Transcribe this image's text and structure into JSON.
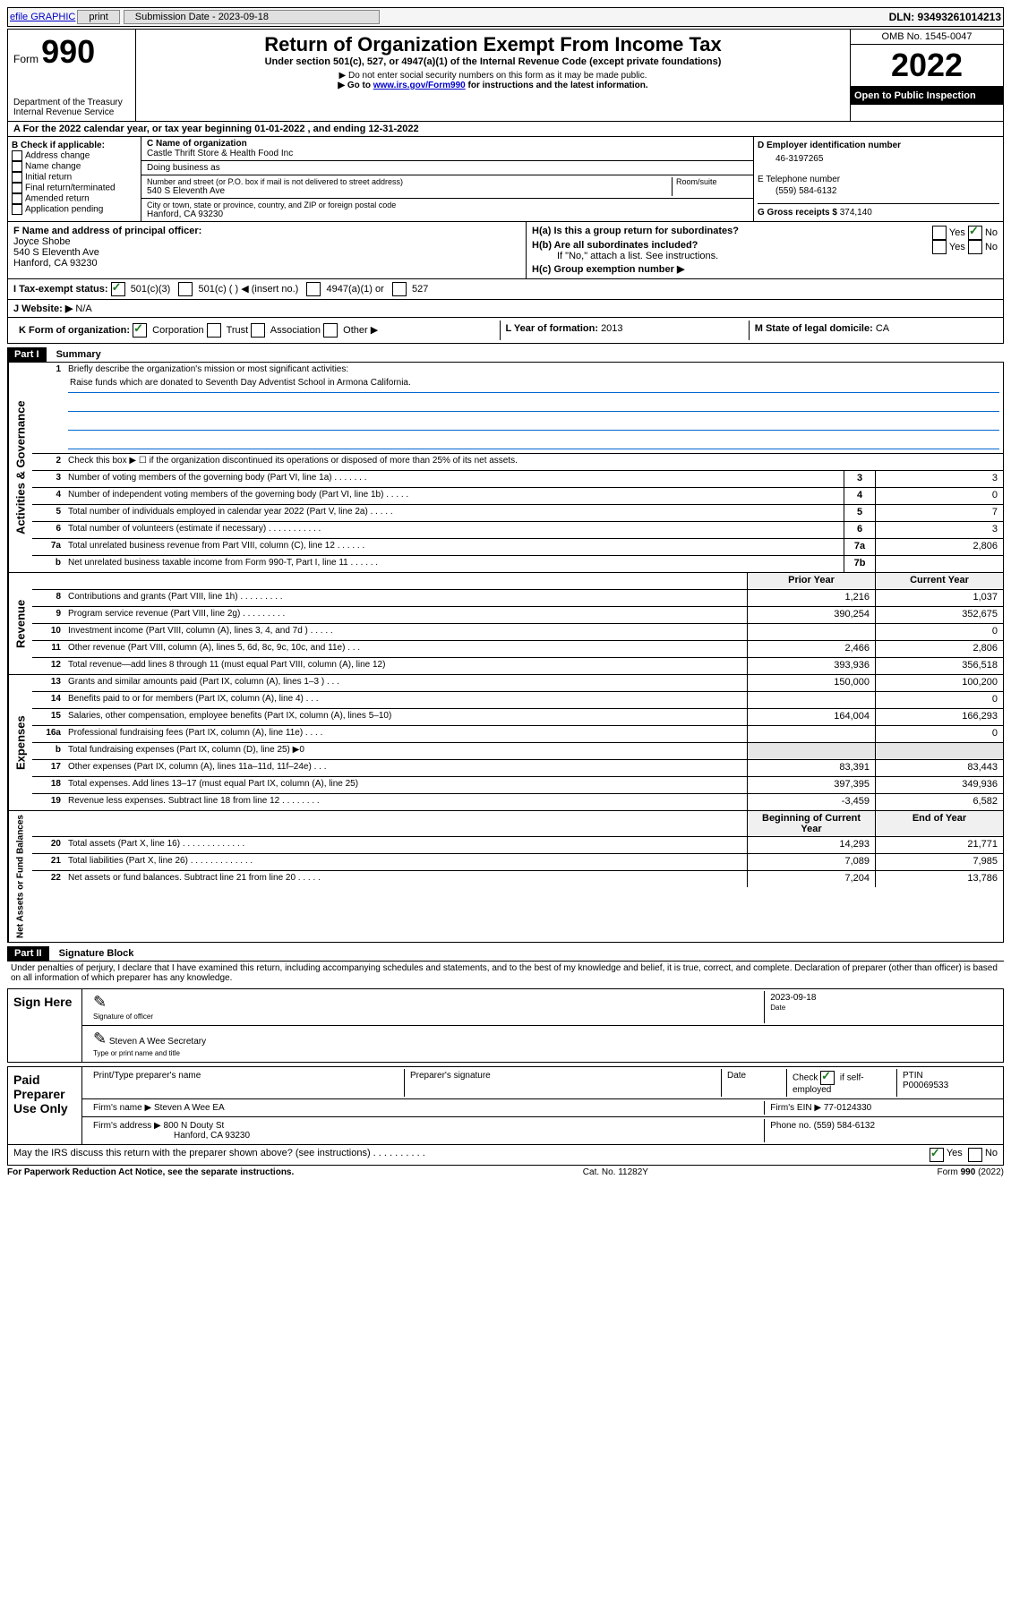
{
  "topbar": {
    "efile_label": "efile GRAPHIC",
    "print_btn": "print",
    "submission_label": "Submission Date - 2023-09-18",
    "dln_label": "DLN: 93493261014213"
  },
  "header": {
    "form_word": "Form",
    "form_number": "990",
    "title": "Return of Organization Exempt From Income Tax",
    "subtitle": "Under section 501(c), 527, or 4947(a)(1) of the Internal Revenue Code (except private foundations)",
    "line1": "▶ Do not enter social security numbers on this form as it may be made public.",
    "line2_pre": "▶ Go to ",
    "line2_link": "www.irs.gov/Form990",
    "line2_post": " for instructions and the latest information.",
    "dept": "Department of the Treasury",
    "irs": "Internal Revenue Service",
    "omb": "OMB No. 1545-0047",
    "year": "2022",
    "open": "Open to Public Inspection"
  },
  "period": {
    "text_a": "A For the 2022 calendar year, or tax year beginning ",
    "begin": "01-01-2022",
    "text_mid": " , and ending ",
    "end": "12-31-2022"
  },
  "section_b": {
    "heading": "B Check if applicable:",
    "items": [
      "Address change",
      "Name change",
      "Initial return",
      "Final return/terminated",
      "Amended return",
      "Application pending"
    ]
  },
  "section_c": {
    "name_label": "C Name of organization",
    "name": "Castle Thrift Store & Health Food Inc",
    "dba_label": "Doing business as",
    "street_label": "Number and street (or P.O. box if mail is not delivered to street address)",
    "room_label": "Room/suite",
    "street": "540 S Eleventh Ave",
    "city_label": "City or town, state or province, country, and ZIP or foreign postal code",
    "city": "Hanford, CA  93230"
  },
  "section_d": {
    "ein_label": "D Employer identification number",
    "ein": "46-3197265",
    "phone_label": "E Telephone number",
    "phone": "(559) 584-6132",
    "gross_label": "G Gross receipts $ ",
    "gross": "374,140"
  },
  "section_f": {
    "label": "F Name and address of principal officer:",
    "name": "Joyce Shobe",
    "addr1": "540 S Eleventh Ave",
    "addr2": "Hanford, CA  93230"
  },
  "section_h": {
    "ha": "H(a)  Is this a group return for subordinates?",
    "hb": "H(b)  Are all subordinates included?",
    "hb_note": "If \"No,\" attach a list. See instructions.",
    "hc": "H(c)  Group exemption number ▶",
    "yes": "Yes",
    "no": "No"
  },
  "tax_status": {
    "label": "I   Tax-exempt status:",
    "opt1": "501(c)(3)",
    "opt2": "501(c) (   ) ◀ (insert no.)",
    "opt3": "4947(a)(1) or",
    "opt4": "527"
  },
  "website": {
    "label": "J   Website: ▶",
    "value": "N/A"
  },
  "kform": {
    "label": "K Form of organization:",
    "opts": [
      "Corporation",
      "Trust",
      "Association",
      "Other ▶"
    ],
    "l_label": "L Year of formation: ",
    "l_val": "2013",
    "m_label": "M State of legal domicile: ",
    "m_val": "CA"
  },
  "part1": {
    "header": "Part I",
    "title": "Summary",
    "line1_label": "Briefly describe the organization's mission or most significant activities:",
    "mission": "Raise funds which are donated to Seventh Day Adventist School in Armona California.",
    "line2": "Check this box ▶ ☐  if the organization discontinued its operations or disposed of more than 25% of its net assets.",
    "groups": {
      "gov": "Activities & Governance",
      "rev": "Revenue",
      "exp": "Expenses",
      "net": "Net Assets or Fund Balances"
    },
    "col_headers": {
      "prior": "Prior Year",
      "current": "Current Year",
      "begin": "Beginning of Current Year",
      "end": "End of Year"
    },
    "rows_gov": [
      {
        "n": "3",
        "t": "Number of voting members of the governing body (Part VI, line 1a)  .   .   .   .   .   .   .",
        "cn": "3",
        "v": "3"
      },
      {
        "n": "4",
        "t": "Number of independent voting members of the governing body (Part VI, line 1b)   .   .   .   .   .",
        "cn": "4",
        "v": "0"
      },
      {
        "n": "5",
        "t": "Total number of individuals employed in calendar year 2022 (Part V, line 2a)   .   .   .   .   .",
        "cn": "5",
        "v": "7"
      },
      {
        "n": "6",
        "t": "Total number of volunteers (estimate if necessary)   .   .   .   .   .   .   .   .   .   .   .",
        "cn": "6",
        "v": "3"
      },
      {
        "n": "7a",
        "t": "Total unrelated business revenue from Part VIII, column (C), line 12   .   .   .   .   .   .",
        "cn": "7a",
        "v": "2,806"
      },
      {
        "n": "b",
        "t": "Net unrelated business taxable income from Form 990-T, Part I, line 11   .   .   .   .   .   .",
        "cn": "7b",
        "v": ""
      }
    ],
    "rows_rev": [
      {
        "n": "8",
        "t": "Contributions and grants (Part VIII, line 1h)   .   .   .   .   .   .   .   .   .",
        "p": "1,216",
        "c": "1,037"
      },
      {
        "n": "9",
        "t": "Program service revenue (Part VIII, line 2g)   .   .   .   .   .   .   .   .   .",
        "p": "390,254",
        "c": "352,675"
      },
      {
        "n": "10",
        "t": "Investment income (Part VIII, column (A), lines 3, 4, and 7d )   .   .   .   .   .",
        "p": "",
        "c": "0"
      },
      {
        "n": "11",
        "t": "Other revenue (Part VIII, column (A), lines 5, 6d, 8c, 9c, 10c, and 11e)   .   .   .",
        "p": "2,466",
        "c": "2,806"
      },
      {
        "n": "12",
        "t": "Total revenue—add lines 8 through 11 (must equal Part VIII, column (A), line 12)",
        "p": "393,936",
        "c": "356,518"
      }
    ],
    "rows_exp": [
      {
        "n": "13",
        "t": "Grants and similar amounts paid (Part IX, column (A), lines 1–3 )   .   .   .",
        "p": "150,000",
        "c": "100,200"
      },
      {
        "n": "14",
        "t": "Benefits paid to or for members (Part IX, column (A), line 4)   .   .   .",
        "p": "",
        "c": "0"
      },
      {
        "n": "15",
        "t": "Salaries, other compensation, employee benefits (Part IX, column (A), lines 5–10)",
        "p": "164,004",
        "c": "166,293"
      },
      {
        "n": "16a",
        "t": "Professional fundraising fees (Part IX, column (A), line 11e)   .   .   .   .",
        "p": "",
        "c": "0"
      },
      {
        "n": "b",
        "t": "Total fundraising expenses (Part IX, column (D), line 25) ▶0",
        "p": "—shade—",
        "c": "—shade—"
      },
      {
        "n": "17",
        "t": "Other expenses (Part IX, column (A), lines 11a–11d, 11f–24e)   .   .   .",
        "p": "83,391",
        "c": "83,443"
      },
      {
        "n": "18",
        "t": "Total expenses. Add lines 13–17 (must equal Part IX, column (A), line 25)",
        "p": "397,395",
        "c": "349,936"
      },
      {
        "n": "19",
        "t": "Revenue less expenses. Subtract line 18 from line 12   .   .   .   .   .   .   .   .",
        "p": "-3,459",
        "c": "6,582"
      }
    ],
    "rows_net": [
      {
        "n": "20",
        "t": "Total assets (Part X, line 16)   .   .   .   .   .   .   .   .   .   .   .   .   .",
        "p": "14,293",
        "c": "21,771"
      },
      {
        "n": "21",
        "t": "Total liabilities (Part X, line 26)   .   .   .   .   .   .   .   .   .   .   .   .   .",
        "p": "7,089",
        "c": "7,985"
      },
      {
        "n": "22",
        "t": "Net assets or fund balances. Subtract line 21 from line 20   .   .   .   .   .",
        "p": "7,204",
        "c": "13,786"
      }
    ]
  },
  "part2": {
    "header": "Part II",
    "title": "Signature Block",
    "declaration": "Under penalties of perjury, I declare that I have examined this return, including accompanying schedules and statements, and to the best of my knowledge and belief, it is true, correct, and complete. Declaration of preparer (other than officer) is based on all information of which preparer has any knowledge."
  },
  "sign": {
    "left": "Sign Here",
    "sig_label": "Signature of officer",
    "date_label": "Date",
    "date": "2023-09-18",
    "name": "Steven A Wee Secretary",
    "name_label": "Type or print name and title"
  },
  "preparer": {
    "left": "Paid Preparer Use Only",
    "h1": "Print/Type preparer's name",
    "h2": "Preparer's signature",
    "h3": "Date",
    "h4_pre": "Check",
    "h4_post": "if self-employed",
    "ptin_label": "PTIN",
    "ptin": "P00069533",
    "firm_name_label": "Firm's name    ▶",
    "firm_name": "Steven A Wee EA",
    "firm_ein_label": "Firm's EIN ▶",
    "firm_ein": "77-0124330",
    "firm_addr_label": "Firm's address ▶",
    "firm_addr1": "800 N Douty St",
    "firm_addr2": "Hanford, CA  93230",
    "firm_phone_label": "Phone no.",
    "firm_phone": "(559) 584-6132"
  },
  "discuss": {
    "text": "May the IRS discuss this return with the preparer shown above? (see instructions)   .    .    .    .    .    .    .    .    .    .",
    "yes": "Yes",
    "no": "No"
  },
  "footer": {
    "left": "For Paperwork Reduction Act Notice, see the separate instructions.",
    "mid": "Cat. No. 11282Y",
    "right": "Form 990 (2022)"
  }
}
